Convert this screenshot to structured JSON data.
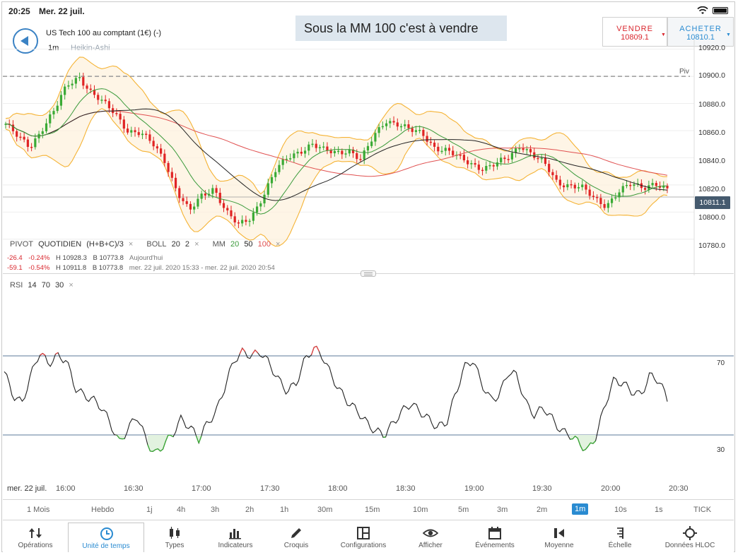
{
  "status_bar": {
    "time": "20:25",
    "date": "Mer. 22 juil."
  },
  "header": {
    "instrument": "US Tech 100 au comptant (1€) (-)",
    "timeframe": "1m",
    "chart_type": "Heikin-Ashi",
    "annotation": "Sous la MM 100 c'est à vendre"
  },
  "trade": {
    "sell_label": "VENDRE",
    "sell_price": "10809.1",
    "buy_label": "ACHETER",
    "buy_price": "10810.1"
  },
  "price_axis": {
    "labels": [
      "10920.0",
      "10900.0",
      "10880.0",
      "10860.0",
      "10840.0",
      "10820.0",
      "10800.0",
      "10780.0"
    ],
    "current_price": "10811.1",
    "pivot_label": "Piv"
  },
  "indicators": {
    "pivot": {
      "name": "PIVOT",
      "mode": "QUOTIDIEN",
      "formula": "(H+B+C)/3"
    },
    "boll": {
      "name": "BOLL",
      "p1": "20",
      "p2": "2"
    },
    "mm": {
      "name": "MM",
      "p1": "20",
      "p2": "50",
      "p3": "100"
    },
    "rsi": {
      "name": "RSI",
      "p1": "14",
      "p2": "70",
      "p3": "30"
    },
    "close_glyph": "×"
  },
  "stats": [
    {
      "change": "-26.4",
      "pct": "-0.24%",
      "high": "H 10928.3",
      "low": "B 10773.8",
      "period": "Aujourd'hui"
    },
    {
      "change": "-59.1",
      "pct": "-0.54%",
      "high": "H 10911.8",
      "low": "B 10773.8",
      "period": "mer. 22 juil. 2020 15:33 - mer. 22 juil. 2020 20:54"
    }
  ],
  "time_axis": {
    "date": "mer. 22 juil.",
    "labels": [
      "16:00",
      "16:30",
      "17:00",
      "17:30",
      "18:00",
      "18:30",
      "19:00",
      "19:30",
      "20:00",
      "20:30"
    ]
  },
  "rsi_levels": [
    "70",
    "30"
  ],
  "timeframes": [
    "1 Mois",
    "Hebdo",
    "1j",
    "4h",
    "3h",
    "2h",
    "1h",
    "30m",
    "15m",
    "10m",
    "5m",
    "3m",
    "2m",
    "1m",
    "10s",
    "1s",
    "TICK"
  ],
  "active_timeframe": "1m",
  "tabs": [
    "Opérations",
    "Unité de temps",
    "Types",
    "Indicateurs",
    "Croquis",
    "Configurations",
    "Afficher",
    "Événements",
    "Moyenne",
    "Échelle",
    "Données HLOC"
  ],
  "active_tab": "Unité de temps",
  "colors": {
    "accent": "#2a8bd1",
    "bull": "#3aaa35",
    "bear": "#e02424",
    "bollinger": "#f5b335",
    "ma20": "#3a9a3a",
    "ma50": "#222222",
    "ma100": "#e05050"
  },
  "chart_data": [
    {
      "type": "candlestick",
      "style": "Heikin-Ashi",
      "ylim": [
        10770,
        10925
      ],
      "x_ticks": [
        "16:00",
        "16:30",
        "17:00",
        "17:30",
        "18:00",
        "18:30",
        "19:00",
        "19:30",
        "20:00",
        "20:30"
      ],
      "close": [
        10865,
        10855,
        10848,
        10862,
        10875,
        10893,
        10900,
        10888,
        10880,
        10872,
        10860,
        10858,
        10850,
        10838,
        10815,
        10800,
        10812,
        10818,
        10800,
        10790,
        10796,
        10812,
        10830,
        10840,
        10845,
        10850,
        10845,
        10844,
        10846,
        10838,
        10855,
        10868,
        10865,
        10860,
        10858,
        10848,
        10845,
        10840,
        10836,
        10832,
        10835,
        10840,
        10850,
        10842,
        10835,
        10822,
        10820,
        10818,
        10810,
        10805,
        10815,
        10820,
        10818,
        10822,
        10816
      ],
      "reference_lines": {
        "pivot": 10900,
        "current": 10811.1
      },
      "series": [
        {
          "name": "MM 20",
          "period": 20
        },
        {
          "name": "MM 50",
          "period": 50
        },
        {
          "name": "MM 100",
          "period": 100
        },
        {
          "name": "BOLL 20 2",
          "period": 20,
          "stddev": 2
        }
      ]
    },
    {
      "type": "line",
      "title": "RSI 14 70 30",
      "ylim": [
        0,
        100
      ],
      "levels": [
        70,
        30
      ],
      "values": [
        62,
        50,
        46,
        60,
        72,
        66,
        70,
        68,
        54,
        50,
        48,
        44,
        36,
        26,
        33,
        40,
        28,
        20,
        25,
        30,
        38,
        34,
        28,
        36,
        42,
        55,
        68,
        72,
        70,
        72,
        66,
        58,
        52,
        56,
        68,
        74,
        70,
        60,
        52,
        46,
        42,
        36,
        32,
        30,
        36,
        42,
        46,
        42,
        38,
        34,
        36,
        50,
        64,
        68,
        56,
        48,
        50,
        62,
        60,
        46,
        40,
        44,
        38,
        32,
        30,
        26,
        22,
        30,
        46,
        58,
        56,
        52,
        50,
        60,
        58,
        48
      ]
    }
  ]
}
